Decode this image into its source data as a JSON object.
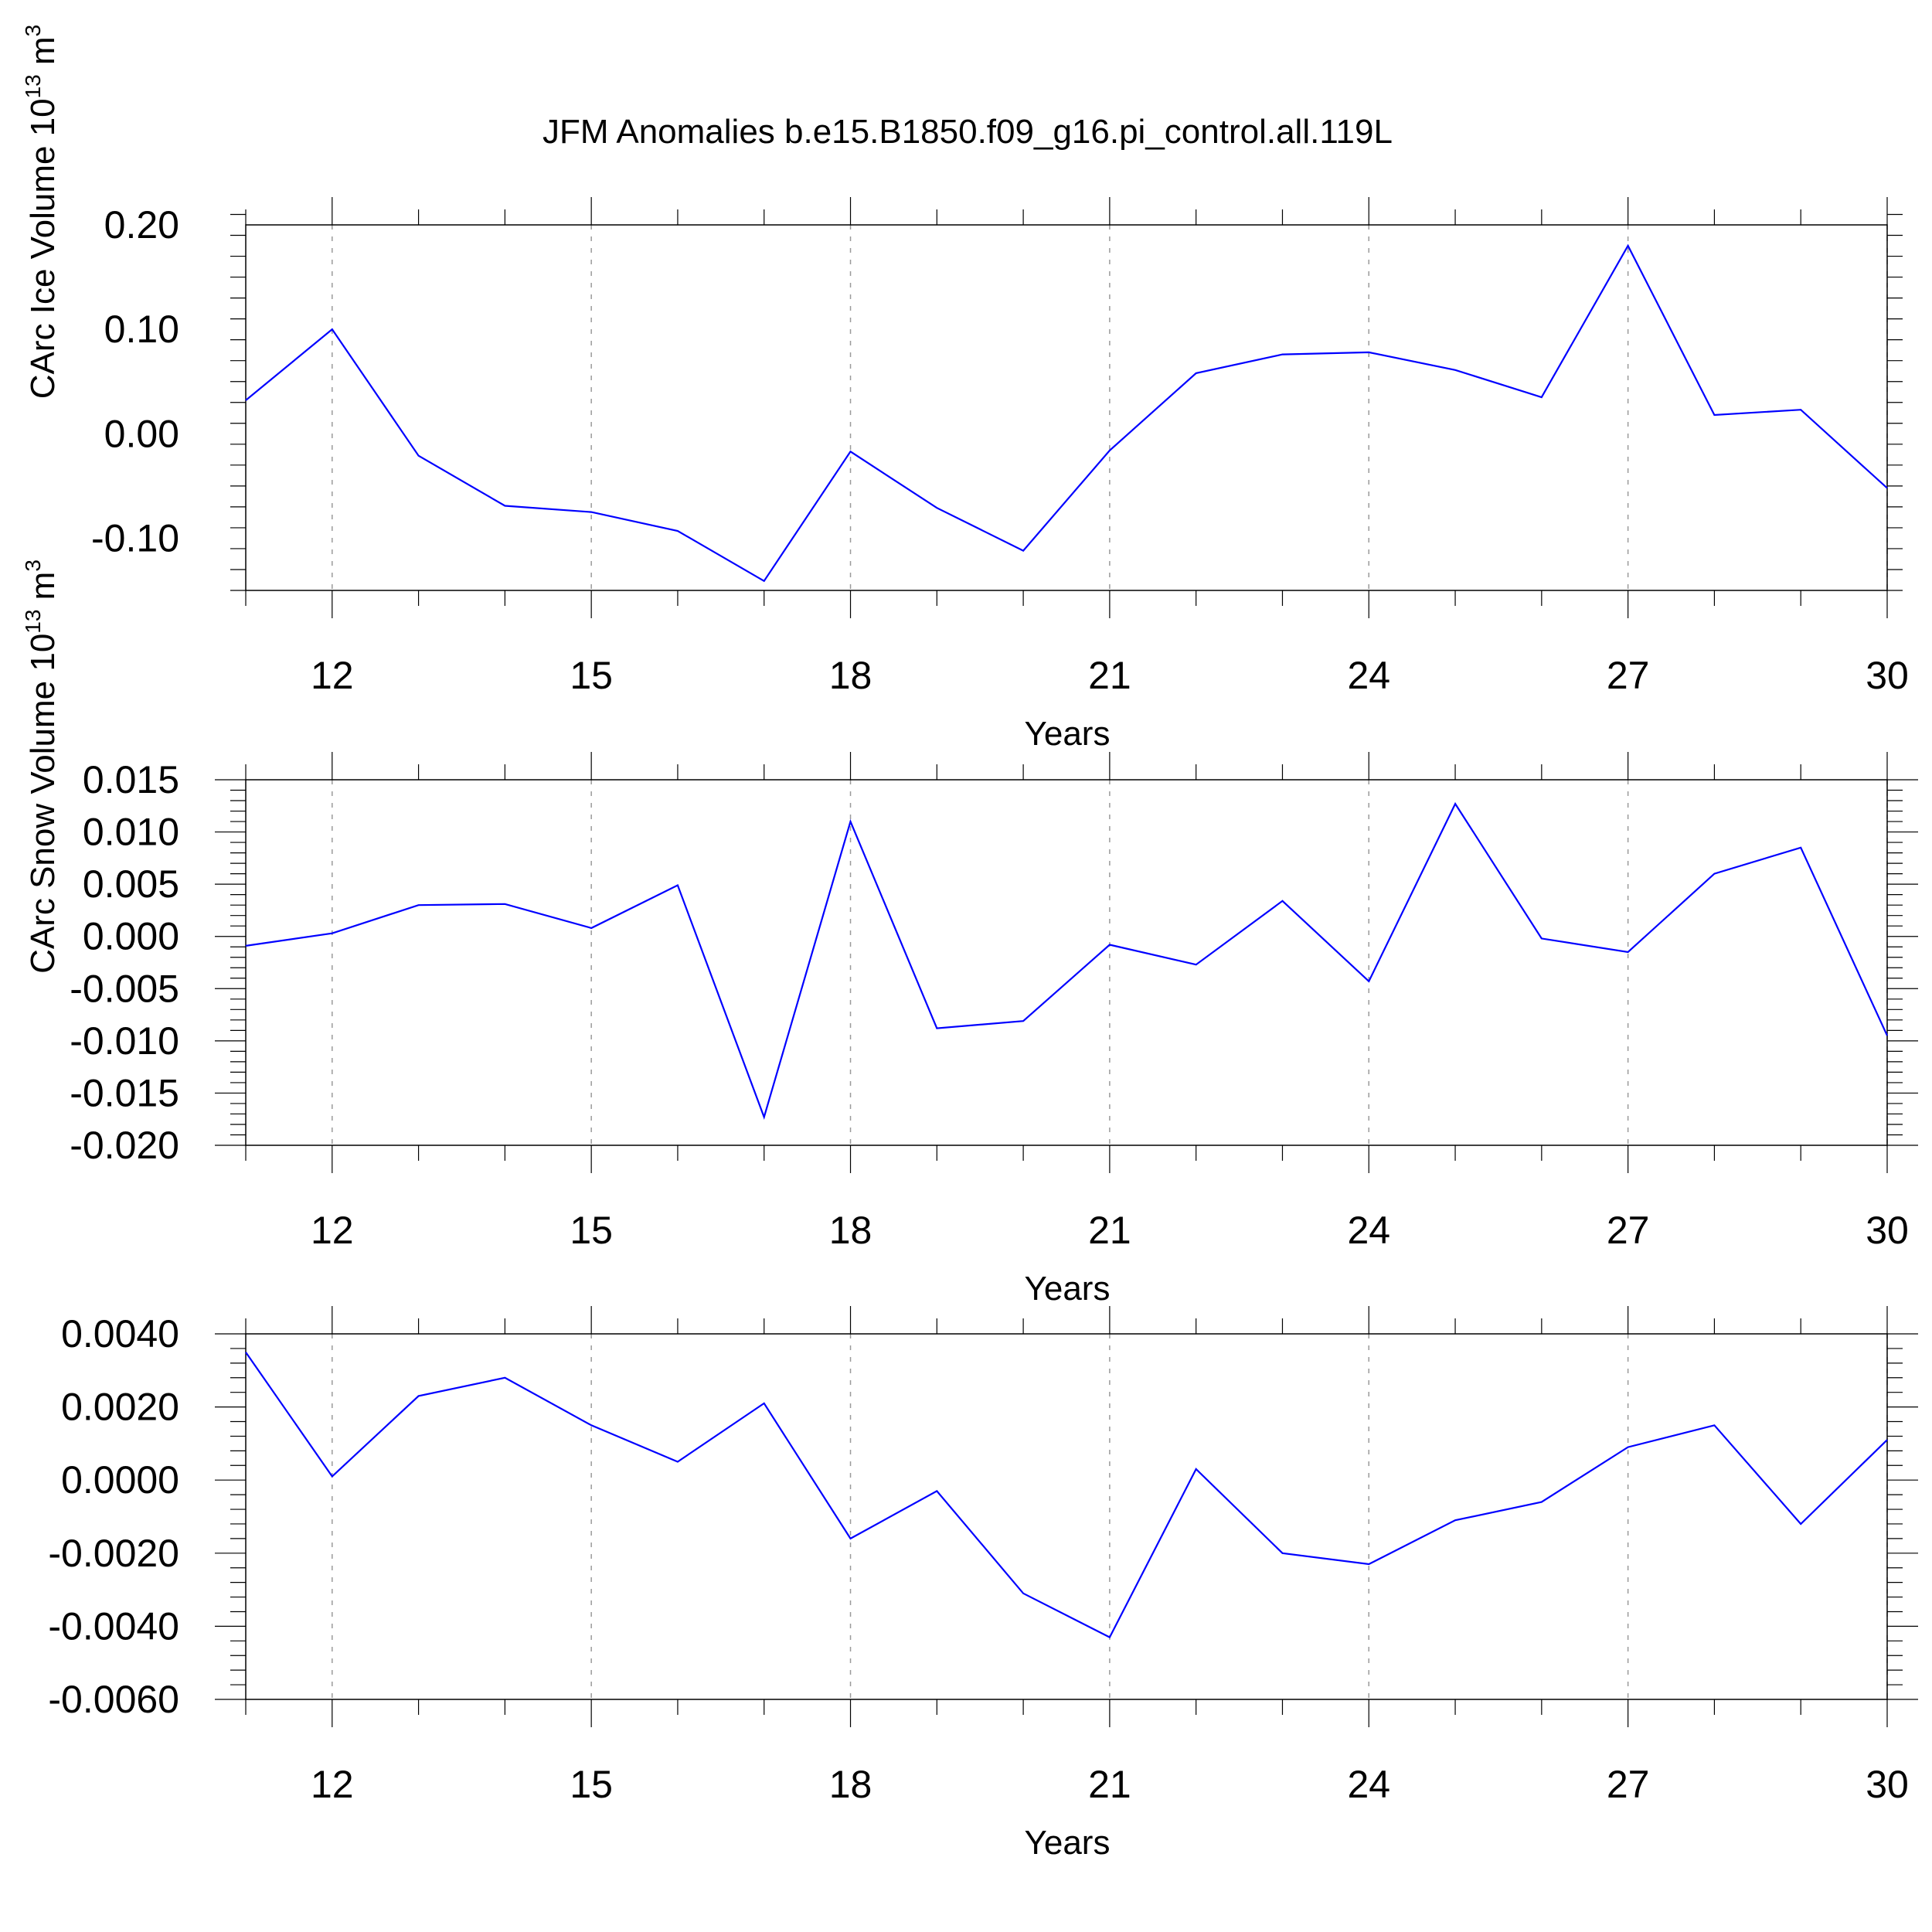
{
  "page": {
    "title": "JFM Anomalies b.e15.B1850.f09_g16.pi_control.all.119L"
  },
  "colors": {
    "line": "#0000ff"
  },
  "chart_data": [
    {
      "type": "line",
      "xlabel": "Years",
      "ylabel": "CArc Ice Volume 10",
      "ylabel_sup": "13",
      "ylabel_unit": "m",
      "ylabel_unit_sup": "3",
      "xlim": [
        11,
        30
      ],
      "ylim": [
        -0.15,
        0.2
      ],
      "x_tick_values": [
        12,
        15,
        18,
        21,
        24,
        27,
        30
      ],
      "x_tick_labels": [
        "12",
        "15",
        "18",
        "21",
        "24",
        "27",
        "30"
      ],
      "y_tick_values": [
        0.2,
        0.1,
        0.0,
        -0.1
      ],
      "y_tick_labels": [
        "0.20",
        "0.10",
        "0.00",
        "-0.10"
      ],
      "grid": "vertical dashed at labelled years",
      "x": [
        11,
        12,
        13,
        14,
        15,
        16,
        17,
        18,
        19,
        20,
        21,
        22,
        23,
        24,
        25,
        26,
        27,
        28,
        29,
        30
      ],
      "values": [
        0.032,
        0.1,
        -0.021,
        -0.069,
        -0.075,
        -0.093,
        -0.141,
        -0.017,
        -0.071,
        -0.112,
        -0.016,
        0.058,
        0.076,
        0.078,
        0.061,
        0.035,
        0.18,
        0.018,
        0.023,
        -0.052
      ]
    },
    {
      "type": "line",
      "xlabel": "Years",
      "ylabel": "CArc Snow Volume 10",
      "ylabel_sup": "13",
      "ylabel_unit": "m",
      "ylabel_unit_sup": "3",
      "xlim": [
        11,
        30
      ],
      "ylim": [
        -0.02,
        0.015
      ],
      "x_tick_values": [
        12,
        15,
        18,
        21,
        24,
        27,
        30
      ],
      "x_tick_labels": [
        "12",
        "15",
        "18",
        "21",
        "24",
        "27",
        "30"
      ],
      "y_tick_values": [
        0.015,
        0.01,
        0.005,
        0.0,
        -0.005,
        -0.01,
        -0.015,
        -0.02
      ],
      "y_tick_labels": [
        "0.015",
        "0.010",
        "0.005",
        "0.000",
        "-0.005",
        "-0.010",
        "-0.015",
        "-0.020"
      ],
      "grid": "vertical dashed at labelled years",
      "x": [
        11,
        12,
        13,
        14,
        15,
        16,
        17,
        18,
        19,
        20,
        21,
        22,
        23,
        24,
        25,
        26,
        27,
        28,
        29,
        30
      ],
      "values": [
        -0.0009,
        0.0003,
        0.003,
        0.0031,
        0.0008,
        0.0049,
        -0.0173,
        0.011,
        -0.0088,
        -0.0081,
        -0.0008,
        -0.0027,
        0.0034,
        -0.0043,
        0.0127,
        -0.0002,
        -0.0015,
        0.006,
        0.0085,
        -0.0095
      ]
    },
    {
      "type": "line",
      "xlabel": "Years",
      "ylabel": "",
      "xlim": [
        11,
        30
      ],
      "ylim": [
        -0.006,
        0.004
      ],
      "x_tick_values": [
        12,
        15,
        18,
        21,
        24,
        27,
        30
      ],
      "x_tick_labels": [
        "12",
        "15",
        "18",
        "21",
        "24",
        "27",
        "30"
      ],
      "y_tick_values": [
        0.004,
        0.002,
        0.0,
        -0.002,
        -0.004,
        -0.006
      ],
      "y_tick_labels": [
        "0.0040",
        "0.0020",
        "0.0000",
        "-0.0020",
        "-0.0040",
        "-0.0060"
      ],
      "grid": "vertical dashed at labelled years",
      "x": [
        11,
        12,
        13,
        14,
        15,
        16,
        17,
        18,
        19,
        20,
        21,
        22,
        23,
        24,
        25,
        26,
        27,
        28,
        29,
        30
      ],
      "values": [
        0.0035,
        0.0001,
        0.0023,
        0.0028,
        0.0015,
        0.0005,
        0.0021,
        -0.0016,
        -0.0003,
        -0.0031,
        -0.0043,
        0.0003,
        -0.002,
        -0.0023,
        -0.0011,
        -0.0006,
        0.0009,
        0.0015,
        -0.0012,
        0.0011
      ]
    }
  ]
}
